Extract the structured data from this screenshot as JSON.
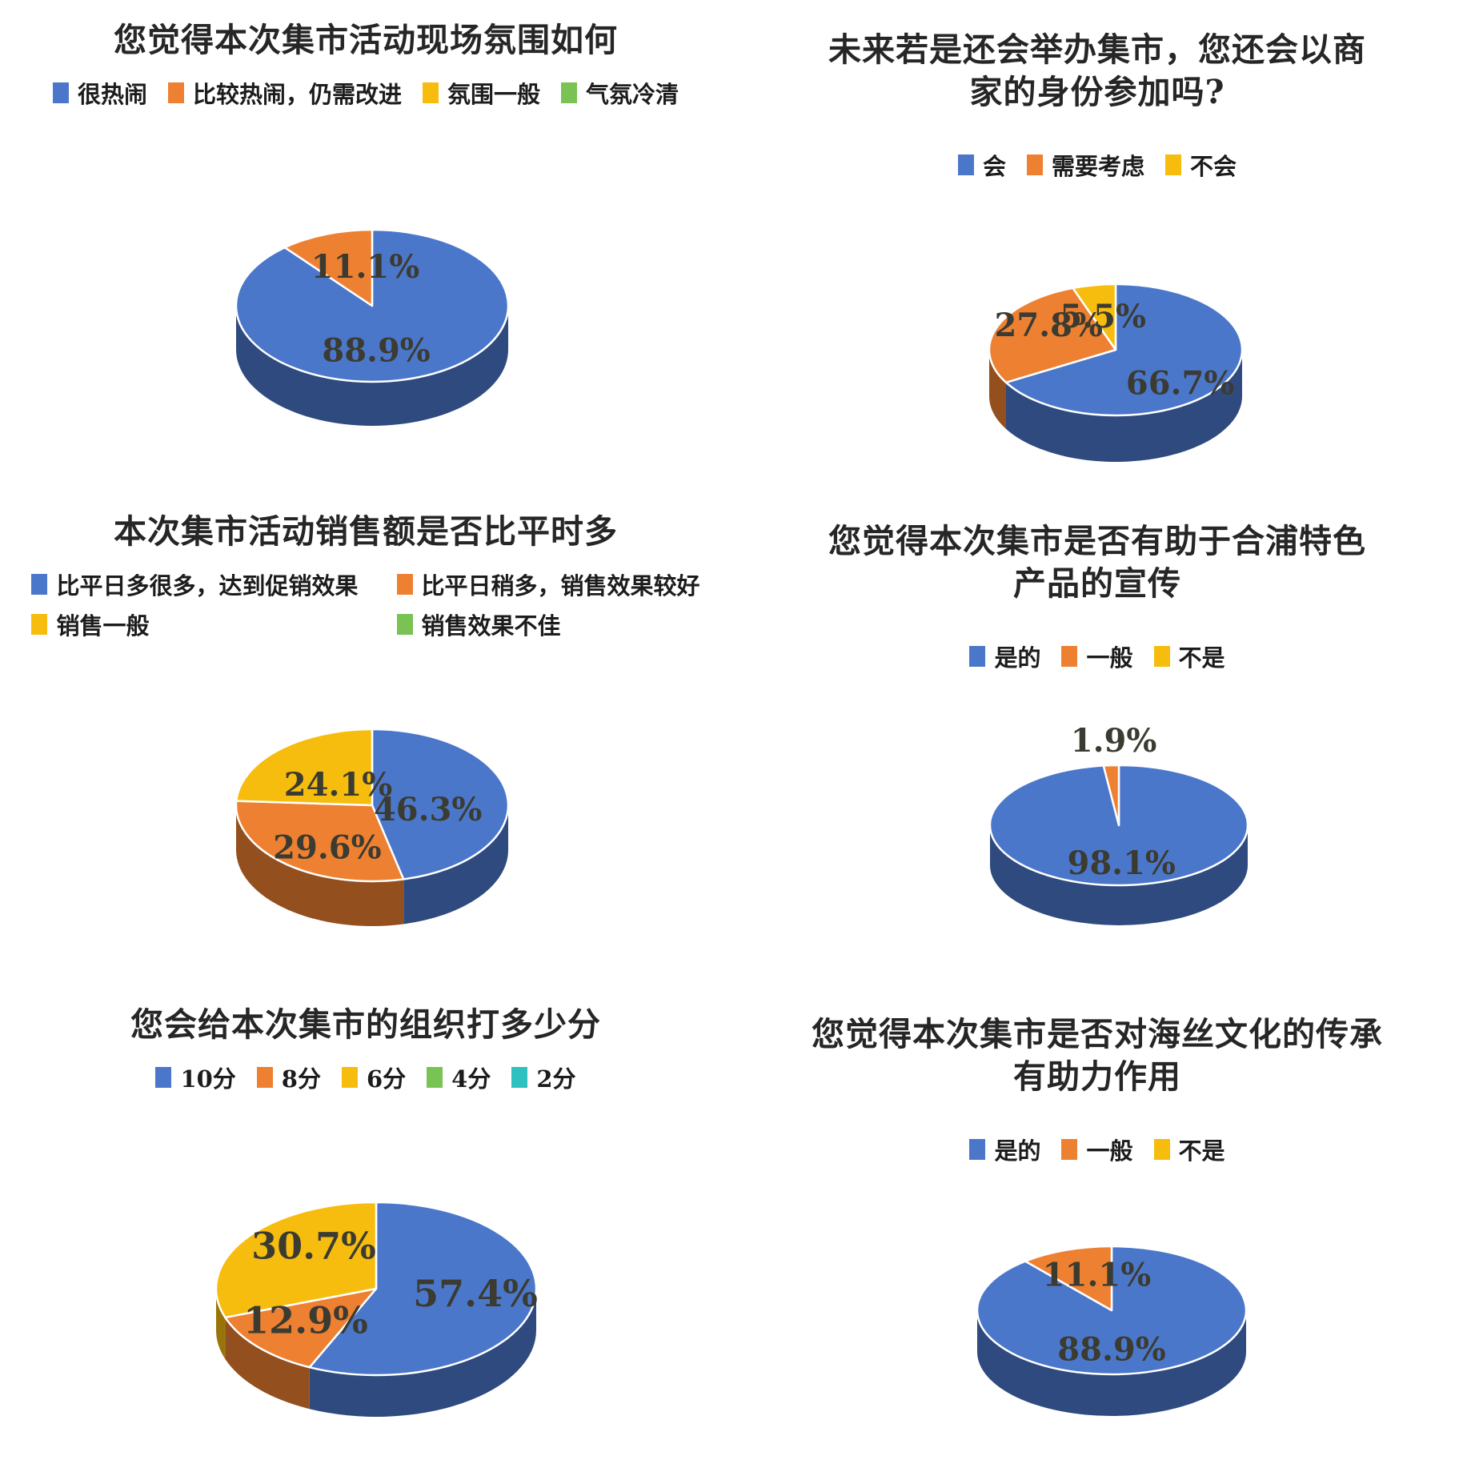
{
  "page": {
    "background": "#ffffff"
  },
  "palette": {
    "blue": "#4b77cb",
    "orange": "#ee8031",
    "yellow": "#f6bd0e",
    "green": "#79c355",
    "teal": "#2fc0c0",
    "label_color": "#3b3b31",
    "title_color": "#262626"
  },
  "chart_data": [
    {
      "type": "pie",
      "style": "3d",
      "title": "您觉得本次集市活动现场氛围如何",
      "legend_position": "top",
      "legend": [
        {
          "label": "很热闹",
          "color": "blue"
        },
        {
          "label": "比较热闹，仍需改进",
          "color": "orange"
        },
        {
          "label": "氛围一般",
          "color": "yellow"
        },
        {
          "label": "气氛冷清",
          "color": "green"
        }
      ],
      "slices": [
        {
          "label": "很热闹",
          "value": 88.9,
          "display": "88.9%",
          "color": "blue",
          "label_pos": [
            0.03,
            0.58
          ]
        },
        {
          "label": "比较热闹，仍需改进",
          "value": 11.1,
          "display": "11.1%",
          "color": "orange",
          "label_pos": [
            -0.05,
            -0.52
          ]
        }
      ]
    },
    {
      "type": "pie",
      "style": "3d",
      "title": "未来若是还会举办集市，您还会以商\n家的身份参加吗?",
      "legend_position": "top",
      "legend": [
        {
          "label": "会",
          "color": "blue"
        },
        {
          "label": "需要考虑",
          "color": "orange"
        },
        {
          "label": "不会",
          "color": "yellow"
        }
      ],
      "slices": [
        {
          "label": "会",
          "value": 66.7,
          "display": "66.7%",
          "color": "blue",
          "label_pos": [
            0.51,
            0.5
          ]
        },
        {
          "label": "需要考虑",
          "value": 27.8,
          "display": "27.8%",
          "color": "orange",
          "label_pos": [
            -0.53,
            -0.38
          ]
        },
        {
          "label": "不会",
          "value": 5.5,
          "display": "5.5%",
          "color": "yellow",
          "label_pos": [
            -0.1,
            -0.52
          ]
        }
      ]
    },
    {
      "type": "pie",
      "style": "3d",
      "title": "本次集市活动销售额是否比平时多",
      "legend_position": "top",
      "legend": [
        {
          "label": "比平日多很多，达到促销效果",
          "color": "blue"
        },
        {
          "label": "比平日稍多，销售效果较好",
          "color": "orange"
        },
        {
          "label": "销售一般",
          "color": "yellow"
        },
        {
          "label": "销售效果不佳",
          "color": "green"
        }
      ],
      "slices": [
        {
          "label": "比平日多很多，达到促销效果",
          "value": 46.3,
          "display": "46.3%",
          "color": "blue",
          "label_pos": [
            0.41,
            0.05
          ]
        },
        {
          "label": "比平日稍多，销售效果较好",
          "value": 29.6,
          "display": "29.6%",
          "color": "orange",
          "label_pos": [
            -0.33,
            0.55
          ]
        },
        {
          "label": "销售一般",
          "value": 24.1,
          "display": "24.1%",
          "color": "yellow",
          "label_pos": [
            -0.25,
            -0.28
          ]
        }
      ]
    },
    {
      "type": "pie",
      "style": "3d",
      "title": "您觉得本次集市是否有助于合浦特色\n产品的宣传",
      "legend_position": "top",
      "legend": [
        {
          "label": "是的",
          "color": "blue"
        },
        {
          "label": "一般",
          "color": "orange"
        },
        {
          "label": "不是",
          "color": "yellow"
        }
      ],
      "slices": [
        {
          "label": "是的",
          "value": 98.1,
          "display": "98.1%",
          "color": "blue",
          "label_pos": [
            0.02,
            0.62
          ]
        },
        {
          "label": "一般",
          "value": 1.9,
          "display": "1.9%",
          "color": "orange",
          "label_pos": [
            -0.04,
            -1.42
          ]
        }
      ]
    },
    {
      "type": "pie",
      "style": "3d",
      "title": "您会给本次集市的组织打多少分",
      "legend_position": "top",
      "legend": [
        {
          "label": "10分",
          "color": "blue"
        },
        {
          "label": "8分",
          "color": "orange"
        },
        {
          "label": "6分",
          "color": "yellow"
        },
        {
          "label": "4分",
          "color": "green"
        },
        {
          "label": "2分",
          "color": "teal"
        }
      ],
      "slices": [
        {
          "label": "10分",
          "value": 57.4,
          "display": "57.4%",
          "color": "blue",
          "label_pos": [
            0.62,
            0.05
          ]
        },
        {
          "label": "8分",
          "value": 12.9,
          "display": "12.9%",
          "color": "orange",
          "label_pos": [
            -0.44,
            0.36
          ]
        },
        {
          "label": "6分",
          "value": 30.7,
          "display": "30.7%",
          "color": "yellow",
          "label_pos": [
            -0.39,
            -0.5
          ]
        }
      ]
    },
    {
      "type": "pie",
      "style": "3d",
      "title": "您觉得本次集市是否对海丝文化的传承\n有助力作用",
      "legend_position": "top",
      "legend": [
        {
          "label": "是的",
          "color": "blue"
        },
        {
          "label": "一般",
          "color": "orange"
        },
        {
          "label": "不是",
          "color": "yellow"
        }
      ],
      "slices": [
        {
          "label": "是的",
          "value": 88.9,
          "display": "88.9%",
          "color": "blue",
          "label_pos": [
            0.0,
            0.6
          ]
        },
        {
          "label": "一般",
          "value": 11.1,
          "display": "11.1%",
          "color": "orange",
          "label_pos": [
            -0.11,
            -0.56
          ]
        }
      ]
    }
  ]
}
